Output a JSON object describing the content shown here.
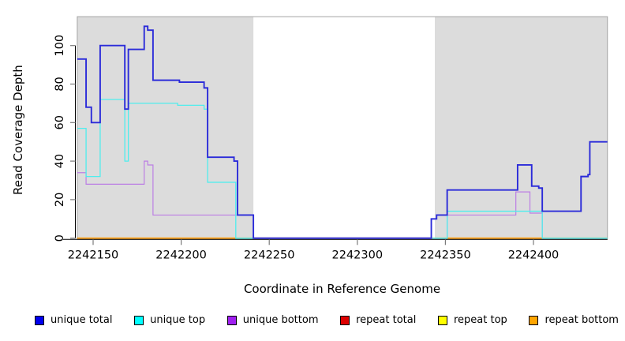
{
  "figure": {
    "x_axis_title": "Coordinate in Reference Genome",
    "y_axis_title": "Read Coverage Depth"
  },
  "colors": {
    "region_fill": "#DCDCDC",
    "plot_border": "#A3A3A3",
    "axis_line": "#000000",
    "tick_mark": "#7A7A7A",
    "zero_overlap_green": "#93DD8F"
  },
  "legend": [
    {
      "label": "unique total",
      "color": "#0000EE"
    },
    {
      "label": "unique top",
      "color": "#00FFFF"
    },
    {
      "label": "unique bottom",
      "color": "#A020F0"
    },
    {
      "label": "repeat total",
      "color": "#DD0000"
    },
    {
      "label": "repeat top",
      "color": "#FFFF00"
    },
    {
      "label": "repeat bottom",
      "color": "#FFA500"
    }
  ],
  "chart_data": {
    "type": "line",
    "subtype": "step-coverage",
    "xlabel": "Coordinate in Reference Genome",
    "ylabel": "Read Coverage Depth",
    "xlim": [
      2242141,
      2242442
    ],
    "ylim": [
      0,
      115
    ],
    "x_ticks": [
      2242150,
      2242200,
      2242250,
      2242300,
      2242350,
      2242400
    ],
    "y_ticks": [
      0,
      20,
      40,
      60,
      80,
      100
    ],
    "grid": false,
    "legend_position": "bottom",
    "shaded_regions": [
      {
        "start": 2242141,
        "end": 2242241
      },
      {
        "start": 2242344,
        "end": 2242442
      }
    ],
    "x_end": 2242442,
    "series": [
      {
        "name": "repeat total",
        "line_color": "#DD0000",
        "width": 1.0,
        "points": [
          [
            2242141,
            0
          ]
        ]
      },
      {
        "name": "repeat top",
        "line_color": "#FFFF00",
        "width": 1.0,
        "points": [
          [
            2242141,
            0
          ]
        ]
      },
      {
        "name": "repeat bottom",
        "line_color": "#FF9800",
        "width": 1.6,
        "points": [
          [
            2242141,
            0
          ]
        ]
      },
      {
        "name": "unique bottom",
        "line_color": "#BC7EE4",
        "width": 1.2,
        "points": [
          [
            2242141,
            34
          ],
          [
            2242146,
            28
          ],
          [
            2242179,
            40
          ],
          [
            2242181,
            38
          ],
          [
            2242184,
            12
          ],
          [
            2242241,
            0
          ],
          [
            2242351,
            12
          ],
          [
            2242390,
            24
          ],
          [
            2242398,
            13
          ],
          [
            2242405,
            0
          ]
        ]
      },
      {
        "name": "unique top",
        "line_color": "#4FEDED",
        "width": 1.3,
        "points": [
          [
            2242141,
            57
          ],
          [
            2242146,
            32
          ],
          [
            2242154,
            72
          ],
          [
            2242168,
            40
          ],
          [
            2242170,
            70
          ],
          [
            2242198,
            69
          ],
          [
            2242213,
            67
          ],
          [
            2242215,
            29
          ],
          [
            2242231,
            0
          ],
          [
            2242351,
            14
          ],
          [
            2242405,
            0
          ]
        ]
      },
      {
        "name": "unique total",
        "line_color": "#2B2BD9",
        "width": 1.9,
        "points": [
          [
            2242141,
            93
          ],
          [
            2242146,
            68
          ],
          [
            2242149,
            60
          ],
          [
            2242154,
            100
          ],
          [
            2242168,
            67
          ],
          [
            2242170,
            98
          ],
          [
            2242179,
            110
          ],
          [
            2242181,
            108
          ],
          [
            2242184,
            82
          ],
          [
            2242199,
            81
          ],
          [
            2242213,
            78
          ],
          [
            2242215,
            42
          ],
          [
            2242230,
            40
          ],
          [
            2242232,
            12
          ],
          [
            2242241,
            0
          ],
          [
            2242342,
            10
          ],
          [
            2242345,
            12
          ],
          [
            2242351,
            25
          ],
          [
            2242391,
            38
          ],
          [
            2242399,
            27
          ],
          [
            2242403,
            26
          ],
          [
            2242405,
            14
          ],
          [
            2242427,
            32
          ],
          [
            2242431,
            33
          ],
          [
            2242432,
            50
          ]
        ]
      }
    ]
  }
}
